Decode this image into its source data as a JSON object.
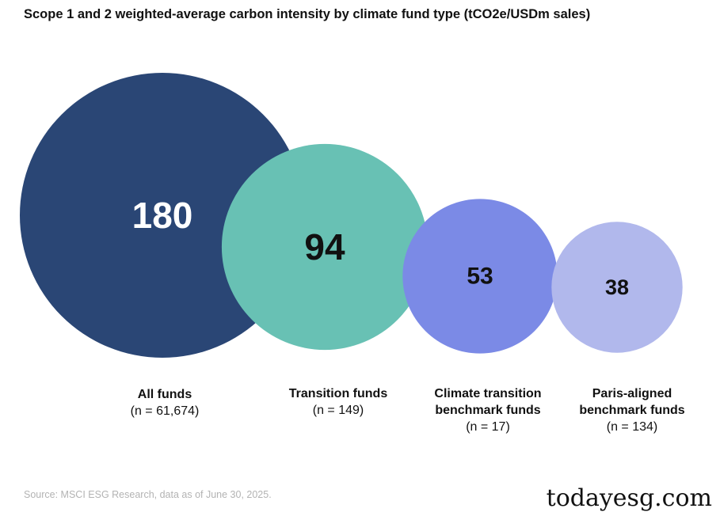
{
  "chart_data": {
    "type": "bubble",
    "title": "Scope 1 and 2 weighted-average carbon intensity by climate fund type (tCO2e/USDm sales)",
    "categories": [
      "All funds",
      "Transition funds",
      "Climate transition benchmark funds",
      "Paris-aligned benchmark funds"
    ],
    "values": [
      180,
      94,
      53,
      38
    ],
    "value_labels": [
      "180",
      "94",
      "53",
      "38"
    ],
    "sample_sizes": [
      "(n = 61,674)",
      "(n = 149)",
      "(n = 17)",
      "(n = 134)"
    ],
    "colors": [
      "#2a4675",
      "#68c1b4",
      "#7b8ae6",
      "#b1b8ec"
    ],
    "value_text_colors": [
      "#ffffff",
      "#111111",
      "#111111",
      "#111111"
    ]
  },
  "labels": [
    {
      "name": "All funds",
      "n": "(n = 61,674)"
    },
    {
      "name": "Transition funds",
      "n": "(n = 149)"
    },
    {
      "name": "Climate transition\nbenchmark funds",
      "n": "(n = 17)"
    },
    {
      "name": "Paris-aligned\nbenchmark funds",
      "n": "(n = 134)"
    }
  ],
  "source": "Source: MSCI ESG Research, data as of June 30, 2025.",
  "watermark": "todayesg.com"
}
